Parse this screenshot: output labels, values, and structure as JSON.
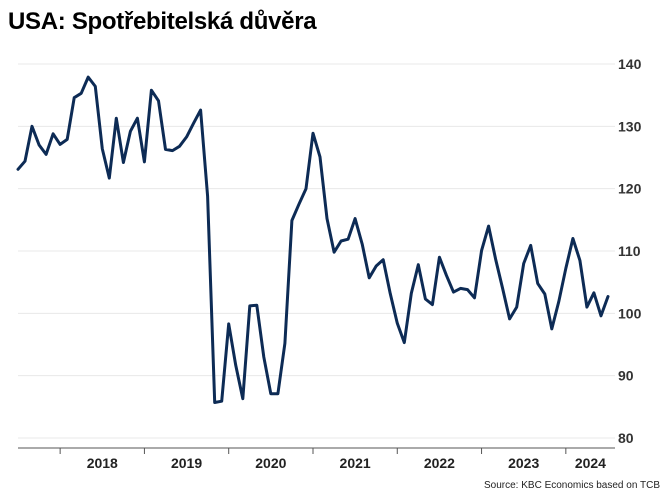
{
  "title": "USA: Spotřebitelská důvěra",
  "source": "Source: KBC Economics based on TCB",
  "colors": {
    "line": "#0d2b55",
    "grid": "#e8e8e8",
    "axis": "#555555"
  },
  "chart_data": {
    "type": "line",
    "title": "USA: Spotřebitelská důvěra",
    "xlabel": "",
    "ylabel": "",
    "x_ticks": [
      "2018",
      "2019",
      "2020",
      "2021",
      "2022",
      "2023",
      "2024"
    ],
    "xlim": [
      "2017-07",
      "2024-08"
    ],
    "ylim": [
      80,
      140
    ],
    "y_ticks": [
      80,
      90,
      100,
      110,
      120,
      130,
      140
    ],
    "y_axis_position": "right",
    "grid": "horizontal",
    "legend": "none",
    "series": [
      {
        "x": [
          "2017-07",
          "2017-08",
          "2017-09",
          "2017-10",
          "2017-11",
          "2017-12",
          "2018-01",
          "2018-02",
          "2018-03",
          "2018-04",
          "2018-05",
          "2018-06",
          "2018-07",
          "2018-08",
          "2018-09",
          "2018-10",
          "2018-11",
          "2018-12",
          "2019-01",
          "2019-02",
          "2019-03",
          "2019-04",
          "2019-05",
          "2019-06",
          "2019-07",
          "2019-08",
          "2019-09",
          "2019-10",
          "2019-11",
          "2019-12",
          "2020-01",
          "2020-02",
          "2020-03",
          "2020-04",
          "2020-05",
          "2020-06",
          "2020-07",
          "2020-08",
          "2020-09",
          "2020-10",
          "2020-11",
          "2020-12",
          "2021-01",
          "2021-02",
          "2021-03",
          "2021-04",
          "2021-05",
          "2021-06",
          "2021-07",
          "2021-08",
          "2021-09",
          "2021-10",
          "2021-11",
          "2021-12",
          "2022-01",
          "2022-02",
          "2022-03",
          "2022-04",
          "2022-05",
          "2022-06",
          "2022-07",
          "2022-08",
          "2022-09",
          "2022-10",
          "2022-11",
          "2022-12",
          "2023-01",
          "2023-02",
          "2023-03",
          "2023-04",
          "2023-05",
          "2023-06",
          "2023-07",
          "2023-08",
          "2023-09",
          "2023-10",
          "2023-11",
          "2023-12",
          "2024-01",
          "2024-02",
          "2024-03",
          "2024-04",
          "2024-05",
          "2024-06",
          "2024-07"
        ],
        "values": [
          123.1,
          124.4,
          130.0,
          127.0,
          125.5,
          128.8,
          127.1,
          127.9,
          134.6,
          135.3,
          137.9,
          136.4,
          126.4,
          121.7,
          131.3,
          124.2,
          129.2,
          131.3,
          124.3,
          135.8,
          134.1,
          126.3,
          126.1,
          126.8,
          128.3,
          130.5,
          132.6,
          118.8,
          85.7,
          85.9,
          98.3,
          91.7,
          86.3,
          101.2,
          101.3,
          93.0,
          87.1,
          87.1,
          95.2,
          114.9,
          117.5,
          120.0,
          128.9,
          125.1,
          115.2,
          109.8,
          111.6,
          111.9,
          115.2,
          111.1,
          105.7,
          107.6,
          108.6,
          103.2,
          98.4,
          95.3,
          103.2,
          107.8,
          102.3,
          101.4,
          109.0,
          106.1,
          103.4,
          104.0,
          103.8,
          102.5,
          110.1,
          114.0,
          108.7,
          104.0,
          99.1,
          101.0,
          108.0,
          110.9,
          104.8,
          103.1,
          97.5,
          101.9,
          107.2,
          112.0,
          108.5,
          101.0,
          103.3,
          99.6,
          102.7
        ]
      }
    ]
  }
}
